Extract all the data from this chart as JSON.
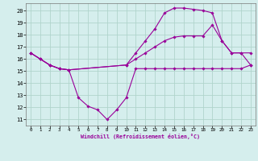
{
  "xlabel": "Windchill (Refroidissement éolien,°C)",
  "xlim": [
    -0.5,
    23.5
  ],
  "ylim": [
    10.5,
    20.6
  ],
  "yticks": [
    11,
    12,
    13,
    14,
    15,
    16,
    17,
    18,
    19,
    20
  ],
  "xticks": [
    0,
    1,
    2,
    3,
    4,
    5,
    6,
    7,
    8,
    9,
    10,
    11,
    12,
    13,
    14,
    15,
    16,
    17,
    18,
    19,
    20,
    21,
    22,
    23
  ],
  "background_color": "#d5eeed",
  "grid_color": "#b0d4cc",
  "line_color": "#990099",
  "series": [
    {
      "x": [
        0,
        1,
        2,
        3,
        4,
        5,
        6,
        7,
        8,
        9,
        10,
        11,
        12,
        13,
        14,
        15,
        16,
        17,
        18,
        19,
        20,
        21,
        22,
        23
      ],
      "y": [
        16.5,
        16.0,
        15.5,
        15.2,
        15.1,
        12.8,
        12.1,
        11.8,
        11.0,
        11.8,
        12.8,
        15.2,
        15.2,
        15.2,
        15.2,
        15.2,
        15.2,
        15.2,
        15.2,
        15.2,
        15.2,
        15.2,
        15.2,
        15.5
      ]
    },
    {
      "x": [
        0,
        1,
        2,
        3,
        4,
        10,
        11,
        12,
        13,
        14,
        15,
        16,
        17,
        18,
        19,
        20,
        21,
        22,
        23
      ],
      "y": [
        16.5,
        16.0,
        15.5,
        15.2,
        15.1,
        15.5,
        16.0,
        16.5,
        17.0,
        17.5,
        17.8,
        17.9,
        17.9,
        17.9,
        18.8,
        17.5,
        16.5,
        16.5,
        16.5
      ]
    },
    {
      "x": [
        0,
        1,
        2,
        3,
        4,
        10,
        11,
        12,
        13,
        14,
        15,
        16,
        17,
        18,
        19,
        20,
        21,
        22,
        23
      ],
      "y": [
        16.5,
        16.0,
        15.5,
        15.2,
        15.1,
        15.5,
        16.5,
        17.5,
        18.5,
        19.8,
        20.2,
        20.2,
        20.1,
        20.0,
        19.8,
        17.5,
        16.5,
        16.5,
        15.5
      ]
    }
  ]
}
